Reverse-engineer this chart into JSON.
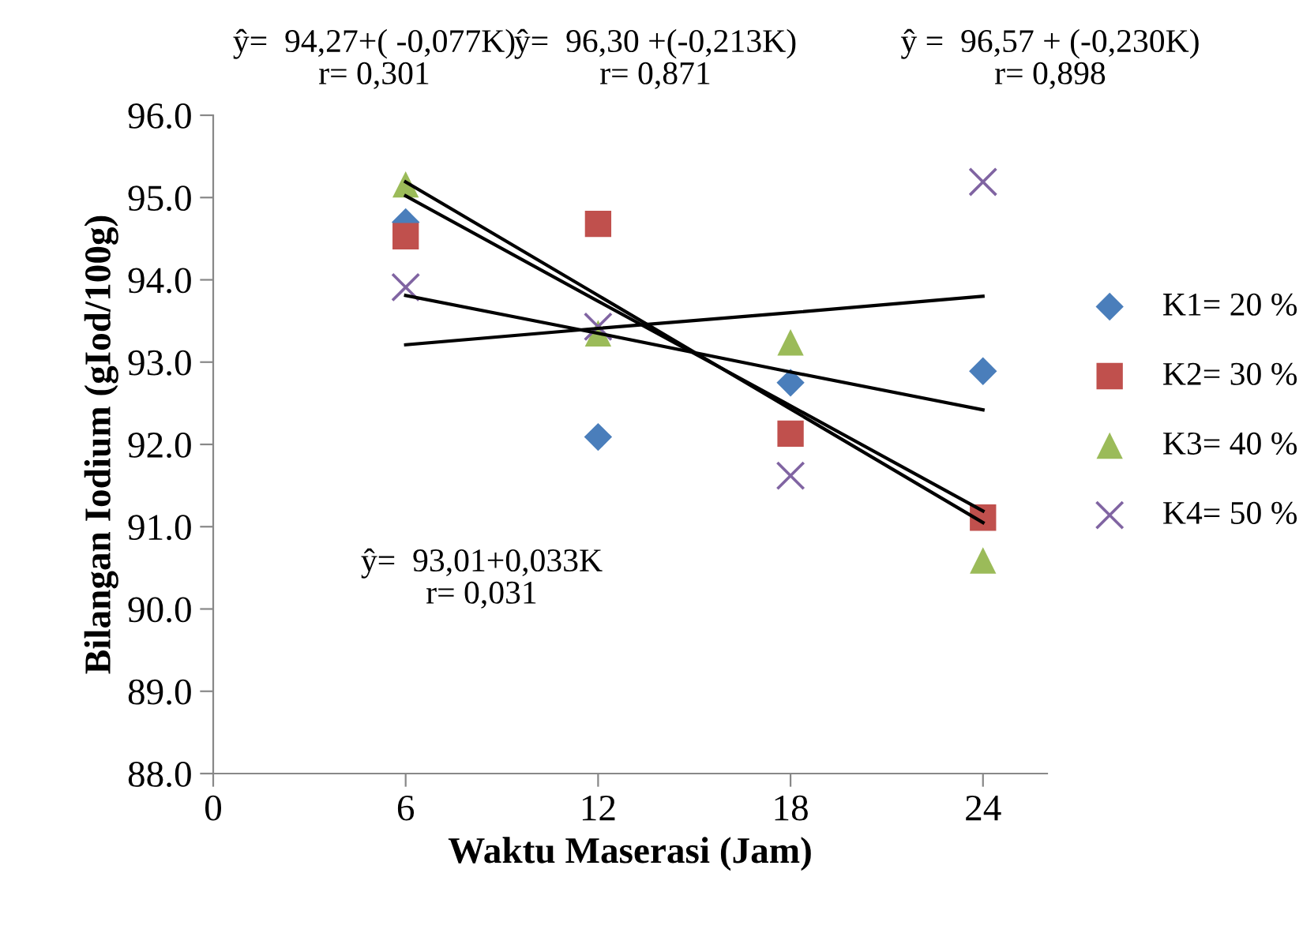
{
  "chart_data": {
    "type": "scatter",
    "xlabel": "Waktu Maserasi (Jam)",
    "ylabel": "Bilangan Iodium (gIod/100g)",
    "x": [
      6,
      12,
      18,
      24
    ],
    "series": [
      {
        "name": "K1= 20 %",
        "color": "#4a7ebb",
        "marker": "diamond",
        "values": [
          94.7,
          92.09,
          92.75,
          92.89
        ]
      },
      {
        "name": "K2= 30 %",
        "color": "#c0504d",
        "marker": "square",
        "values": [
          94.53,
          94.68,
          92.13,
          91.11
        ]
      },
      {
        "name": "K3= 40 %",
        "color": "#9bbb59",
        "marker": "triangle",
        "values": [
          95.16,
          93.35,
          93.24,
          90.59
        ]
      },
      {
        "name": "K4= 50 %",
        "color": "#8064a2",
        "marker": "cross",
        "values": [
          93.91,
          93.43,
          91.62,
          95.19
        ]
      },
      {
        "type": "line",
        "color": "#000000",
        "marker": "none",
        "values": [
          93.81,
          93.35,
          92.88,
          92.42
        ]
      },
      {
        "type": "line",
        "color": "#000000",
        "marker": "none",
        "values": [
          95.02,
          93.74,
          92.47,
          91.19
        ]
      },
      {
        "type": "line",
        "color": "#000000",
        "marker": "none",
        "values": [
          95.19,
          93.81,
          92.43,
          91.05
        ]
      },
      {
        "type": "line",
        "color": "#000000",
        "marker": "none",
        "values": [
          93.21,
          93.41,
          93.6,
          93.8
        ]
      }
    ],
    "xlim": [
      0,
      26
    ],
    "xticks": [
      0,
      6,
      12,
      18,
      24
    ],
    "ylim": [
      88,
      96
    ],
    "yticks": [
      {
        "value": 88,
        "label": "88.0"
      },
      {
        "value": 89,
        "label": "89.0"
      },
      {
        "value": 90,
        "label": "90.0"
      },
      {
        "value": 91,
        "label": "91.0"
      },
      {
        "value": 92,
        "label": "92.0"
      },
      {
        "value": 93,
        "label": "93.0"
      },
      {
        "value": 94,
        "label": "94.0"
      },
      {
        "value": 95,
        "label": "95.0"
      },
      {
        "value": 96,
        "label": "96.0"
      }
    ],
    "annotations": [
      "ŷ=  94,27+( -0,077K)\nr= 0,301",
      "ŷ=  96,30 +(-0,213K)\nr= 0,871",
      "ŷ =  96,57 + (-0,230K)\nr= 0,898",
      "ŷ=  93,01+0,033K\nr= 0,031"
    ],
    "legend": "right",
    "grid": false
  }
}
